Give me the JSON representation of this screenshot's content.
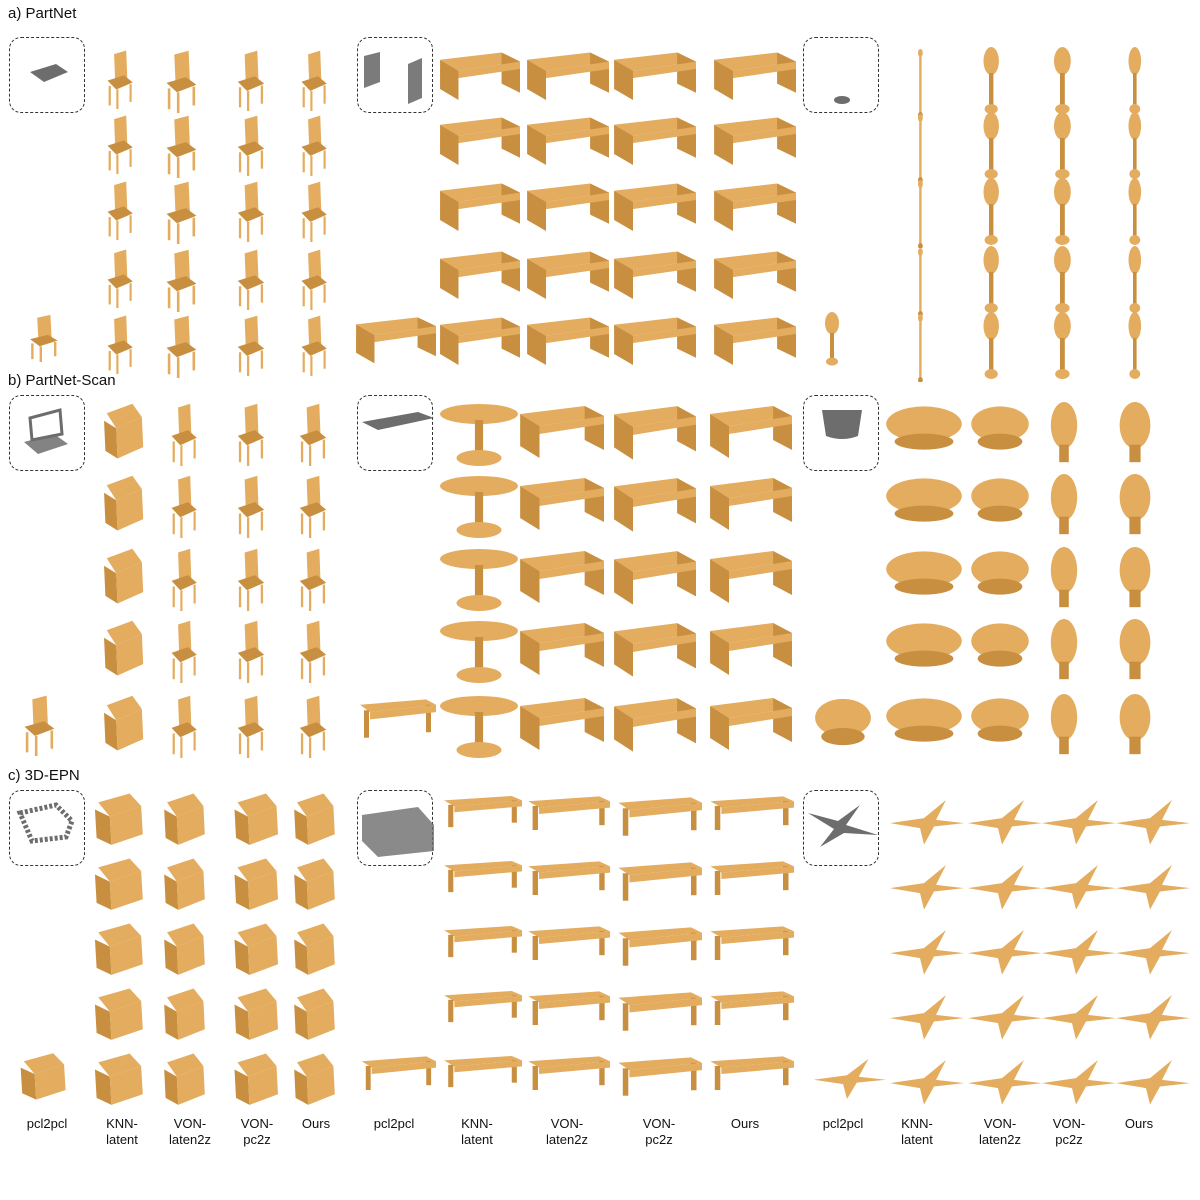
{
  "sections": [
    {
      "title": "a) PartNet"
    },
    {
      "title": "b) PartNet-Scan"
    },
    {
      "title": "c) 3D-EPN"
    }
  ],
  "column_labels": [
    "pcl2pcl",
    "KNN-\nlatent",
    "VON-\nlaten2z",
    "VON-\npc2z",
    "Ours",
    "pcl2pcl",
    "KNN-\nlatent",
    "VON-\nlaten2z",
    "VON-\npc2z",
    "Ours",
    "pcl2pcl",
    "KNN-\nlatent",
    "VON-\nlaten2z",
    "VON-\npc2z",
    "Ours"
  ],
  "colors": {
    "shape": "#e3ac5f",
    "shape_dark": "#c98f40",
    "partial": "#6d6d6d",
    "border": "#333333"
  }
}
